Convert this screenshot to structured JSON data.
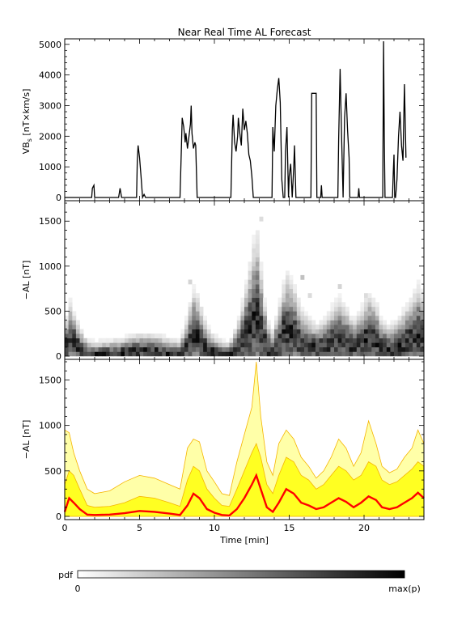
{
  "chart_data": [
    {
      "type": "line",
      "title": "Near Real Time AL Forecast",
      "ylabel": "VB",
      "ylabel_subscript": "s",
      "ylabel_units": "[nT×km/s]",
      "xlim": [
        0,
        24
      ],
      "ylim": [
        0,
        5100
      ],
      "xticks": [
        0,
        5,
        10,
        15,
        20
      ],
      "xtick_labels": [],
      "yticks": [
        0,
        1000,
        2000,
        3000,
        4000,
        5000
      ],
      "ytick_labels": [
        "0",
        "1000",
        "2000",
        "3000",
        "4000",
        "5000"
      ],
      "color": "#000000",
      "series": [
        {
          "points": [
            [
              0,
              0
            ],
            [
              1.8,
              0
            ],
            [
              1.85,
              300
            ],
            [
              1.95,
              400
            ],
            [
              2.0,
              0
            ],
            [
              3.6,
              0
            ],
            [
              3.7,
              300
            ],
            [
              3.8,
              0
            ],
            [
              4.8,
              0
            ],
            [
              4.85,
              1200
            ],
            [
              4.9,
              1700
            ],
            [
              5.0,
              1300
            ],
            [
              5.1,
              700
            ],
            [
              5.2,
              0
            ],
            [
              5.3,
              100
            ],
            [
              5.4,
              0
            ],
            [
              7.7,
              0
            ],
            [
              7.8,
              1700
            ],
            [
              7.85,
              2600
            ],
            [
              7.95,
              2300
            ],
            [
              8.05,
              1800
            ],
            [
              8.1,
              2100
            ],
            [
              8.2,
              1600
            ],
            [
              8.3,
              2000
            ],
            [
              8.4,
              2400
            ],
            [
              8.45,
              3000
            ],
            [
              8.5,
              2100
            ],
            [
              8.6,
              1600
            ],
            [
              8.7,
              1800
            ],
            [
              8.75,
              1700
            ],
            [
              8.85,
              0
            ],
            [
              11.1,
              0
            ],
            [
              11.2,
              2200
            ],
            [
              11.25,
              2700
            ],
            [
              11.35,
              1800
            ],
            [
              11.45,
              1500
            ],
            [
              11.55,
              2000
            ],
            [
              11.6,
              2600
            ],
            [
              11.7,
              2100
            ],
            [
              11.8,
              1700
            ],
            [
              11.9,
              2900
            ],
            [
              12.0,
              2200
            ],
            [
              12.1,
              2500
            ],
            [
              12.2,
              2100
            ],
            [
              12.3,
              1400
            ],
            [
              12.4,
              1200
            ],
            [
              12.5,
              700
            ],
            [
              12.6,
              0
            ],
            [
              13.85,
              0
            ],
            [
              13.9,
              2300
            ],
            [
              14.0,
              1500
            ],
            [
              14.1,
              3000
            ],
            [
              14.2,
              3500
            ],
            [
              14.3,
              3900
            ],
            [
              14.4,
              3100
            ],
            [
              14.5,
              600
            ],
            [
              14.6,
              0
            ],
            [
              14.7,
              0
            ],
            [
              14.75,
              1500
            ],
            [
              14.85,
              2300
            ],
            [
              14.95,
              0
            ],
            [
              15.0,
              700
            ],
            [
              15.1,
              1100
            ],
            [
              15.2,
              0
            ],
            [
              15.3,
              1000
            ],
            [
              15.35,
              1700
            ],
            [
              15.45,
              0
            ],
            [
              16.45,
              0
            ],
            [
              16.5,
              3400
            ],
            [
              16.8,
              3400
            ],
            [
              16.85,
              0
            ],
            [
              17.1,
              0
            ],
            [
              17.15,
              400
            ],
            [
              17.2,
              0
            ],
            [
              18.25,
              0
            ],
            [
              18.3,
              1900
            ],
            [
              18.4,
              4200
            ],
            [
              18.5,
              1900
            ],
            [
              18.6,
              0
            ],
            [
              18.7,
              2600
            ],
            [
              18.8,
              3400
            ],
            [
              18.9,
              2200
            ],
            [
              19.0,
              1300
            ],
            [
              19.05,
              0
            ],
            [
              19.6,
              0
            ],
            [
              19.65,
              300
            ],
            [
              19.7,
              0
            ],
            [
              21.25,
              0
            ],
            [
              21.3,
              5100
            ],
            [
              21.35,
              2000
            ],
            [
              21.4,
              0
            ],
            [
              21.9,
              0
            ],
            [
              21.95,
              800
            ],
            [
              22.0,
              1400
            ],
            [
              22.05,
              0
            ],
            [
              22.1,
              0
            ],
            [
              22.2,
              600
            ],
            [
              22.3,
              2000
            ],
            [
              22.4,
              2800
            ],
            [
              22.5,
              1700
            ],
            [
              22.6,
              1200
            ],
            [
              22.7,
              3700
            ],
            [
              22.8,
              1300
            ]
          ]
        }
      ]
    },
    {
      "type": "heatmap",
      "ylabel": "−AL [nT]",
      "xlim": [
        0,
        24
      ],
      "ylim": [
        0,
        1700
      ],
      "xticks": [
        0,
        5,
        10,
        15,
        20
      ],
      "xtick_labels": [],
      "yticks": [
        0,
        500,
        1000,
        1500
      ],
      "ytick_labels": [
        "0",
        "500",
        "1000",
        "1500"
      ],
      "colorscale": [
        "#ffffff",
        "#000000"
      ],
      "columns": 96,
      "rows": 34,
      "median_profile": [
        [
          0,
          50
        ],
        [
          0.3,
          200
        ],
        [
          0.6,
          150
        ],
        [
          1.0,
          80
        ],
        [
          1.5,
          20
        ],
        [
          2.0,
          15
        ],
        [
          3.0,
          20
        ],
        [
          4.0,
          35
        ],
        [
          5.0,
          60
        ],
        [
          6.0,
          50
        ],
        [
          7.0,
          30
        ],
        [
          7.7,
          15
        ],
        [
          8.2,
          120
        ],
        [
          8.6,
          250
        ],
        [
          9.0,
          200
        ],
        [
          9.5,
          80
        ],
        [
          10.0,
          40
        ],
        [
          10.5,
          15
        ],
        [
          11.0,
          10
        ],
        [
          11.5,
          80
        ],
        [
          12.0,
          200
        ],
        [
          12.5,
          350
        ],
        [
          12.8,
          450
        ],
        [
          13.1,
          300
        ],
        [
          13.5,
          100
        ],
        [
          13.9,
          50
        ],
        [
          14.3,
          150
        ],
        [
          14.8,
          300
        ],
        [
          15.3,
          250
        ],
        [
          15.8,
          150
        ],
        [
          16.3,
          120
        ],
        [
          16.8,
          80
        ],
        [
          17.3,
          100
        ],
        [
          17.8,
          150
        ],
        [
          18.3,
          200
        ],
        [
          18.8,
          160
        ],
        [
          19.3,
          100
        ],
        [
          19.8,
          150
        ],
        [
          20.3,
          220
        ],
        [
          20.8,
          180
        ],
        [
          21.2,
          100
        ],
        [
          21.7,
          80
        ],
        [
          22.2,
          100
        ],
        [
          22.7,
          150
        ],
        [
          23.2,
          200
        ],
        [
          23.6,
          260
        ],
        [
          24.0,
          200
        ]
      ],
      "spread_profile": [
        [
          0,
          0.8
        ],
        [
          2,
          0.6
        ],
        [
          4,
          0.6
        ],
        [
          6,
          0.6
        ],
        [
          8,
          0.8
        ],
        [
          10,
          0.7
        ],
        [
          12,
          0.9
        ],
        [
          13,
          1.0
        ],
        [
          16,
          0.8
        ],
        [
          24,
          0.8
        ]
      ]
    },
    {
      "type": "area",
      "ylabel": "−AL [nT]",
      "xlabel": "Time [min]",
      "xlim": [
        0,
        24
      ],
      "ylim": [
        0,
        1700
      ],
      "xticks": [
        0,
        5,
        10,
        15,
        20
      ],
      "xtick_labels": [
        "0",
        "5",
        "10",
        "15",
        "20"
      ],
      "yticks": [
        0,
        500,
        1000,
        1500
      ],
      "ytick_labels": [
        "0",
        "500",
        "1000",
        "1500"
      ],
      "band_colors": {
        "outer": "#ffffa8",
        "inner": "#ffff22",
        "edge": "#f5b400",
        "median": "#ff0000"
      },
      "median": [
        [
          0,
          50
        ],
        [
          0.3,
          200
        ],
        [
          0.6,
          150
        ],
        [
          1.0,
          80
        ],
        [
          1.5,
          20
        ],
        [
          2.0,
          15
        ],
        [
          3.0,
          20
        ],
        [
          4.0,
          35
        ],
        [
          5.0,
          60
        ],
        [
          6.0,
          50
        ],
        [
          7.0,
          30
        ],
        [
          7.7,
          15
        ],
        [
          8.2,
          120
        ],
        [
          8.6,
          250
        ],
        [
          9.0,
          200
        ],
        [
          9.5,
          80
        ],
        [
          10.0,
          40
        ],
        [
          10.5,
          15
        ],
        [
          11.0,
          10
        ],
        [
          11.5,
          80
        ],
        [
          12.0,
          200
        ],
        [
          12.5,
          350
        ],
        [
          12.8,
          450
        ],
        [
          13.1,
          300
        ],
        [
          13.5,
          100
        ],
        [
          13.9,
          50
        ],
        [
          14.3,
          150
        ],
        [
          14.8,
          300
        ],
        [
          15.3,
          250
        ],
        [
          15.8,
          150
        ],
        [
          16.3,
          120
        ],
        [
          16.8,
          80
        ],
        [
          17.3,
          100
        ],
        [
          17.8,
          150
        ],
        [
          18.3,
          200
        ],
        [
          18.8,
          160
        ],
        [
          19.3,
          100
        ],
        [
          19.8,
          150
        ],
        [
          20.3,
          220
        ],
        [
          20.8,
          180
        ],
        [
          21.2,
          100
        ],
        [
          21.7,
          80
        ],
        [
          22.2,
          100
        ],
        [
          22.7,
          150
        ],
        [
          23.2,
          200
        ],
        [
          23.6,
          260
        ],
        [
          24.0,
          200
        ]
      ],
      "inner_upper": [
        [
          0,
          350
        ],
        [
          0.3,
          500
        ],
        [
          0.6,
          450
        ],
        [
          1.0,
          300
        ],
        [
          1.5,
          120
        ],
        [
          2.0,
          100
        ],
        [
          3.0,
          110
        ],
        [
          4.0,
          150
        ],
        [
          5.0,
          220
        ],
        [
          6.0,
          200
        ],
        [
          7.0,
          150
        ],
        [
          7.7,
          110
        ],
        [
          8.2,
          400
        ],
        [
          8.6,
          550
        ],
        [
          9.0,
          500
        ],
        [
          9.5,
          300
        ],
        [
          10.0,
          200
        ],
        [
          10.5,
          120
        ],
        [
          11.0,
          110
        ],
        [
          11.5,
          300
        ],
        [
          12.0,
          500
        ],
        [
          12.5,
          700
        ],
        [
          12.8,
          800
        ],
        [
          13.1,
          650
        ],
        [
          13.5,
          350
        ],
        [
          13.9,
          250
        ],
        [
          14.3,
          450
        ],
        [
          14.8,
          650
        ],
        [
          15.3,
          600
        ],
        [
          15.8,
          450
        ],
        [
          16.3,
          400
        ],
        [
          16.8,
          300
        ],
        [
          17.3,
          350
        ],
        [
          17.8,
          450
        ],
        [
          18.3,
          550
        ],
        [
          18.8,
          500
        ],
        [
          19.3,
          400
        ],
        [
          19.8,
          450
        ],
        [
          20.3,
          600
        ],
        [
          20.8,
          550
        ],
        [
          21.2,
          400
        ],
        [
          21.7,
          350
        ],
        [
          22.2,
          380
        ],
        [
          22.7,
          450
        ],
        [
          23.2,
          520
        ],
        [
          23.6,
          600
        ],
        [
          24.0,
          550
        ]
      ],
      "outer_upper": [
        [
          0,
          950
        ],
        [
          0.3,
          920
        ],
        [
          0.6,
          700
        ],
        [
          1.0,
          500
        ],
        [
          1.5,
          300
        ],
        [
          2.0,
          250
        ],
        [
          3.0,
          280
        ],
        [
          4.0,
          380
        ],
        [
          5.0,
          450
        ],
        [
          6.0,
          420
        ],
        [
          7.0,
          350
        ],
        [
          7.7,
          300
        ],
        [
          8.2,
          750
        ],
        [
          8.6,
          850
        ],
        [
          9.0,
          820
        ],
        [
          9.5,
          500
        ],
        [
          10.0,
          380
        ],
        [
          10.5,
          250
        ],
        [
          11.0,
          230
        ],
        [
          11.5,
          600
        ],
        [
          12.0,
          900
        ],
        [
          12.5,
          1200
        ],
        [
          12.8,
          1700
        ],
        [
          13.1,
          1100
        ],
        [
          13.5,
          600
        ],
        [
          13.9,
          450
        ],
        [
          14.3,
          800
        ],
        [
          14.8,
          950
        ],
        [
          15.3,
          850
        ],
        [
          15.8,
          650
        ],
        [
          16.3,
          550
        ],
        [
          16.8,
          420
        ],
        [
          17.3,
          500
        ],
        [
          17.8,
          650
        ],
        [
          18.3,
          850
        ],
        [
          18.8,
          750
        ],
        [
          19.3,
          550
        ],
        [
          19.8,
          700
        ],
        [
          20.3,
          1050
        ],
        [
          20.8,
          800
        ],
        [
          21.2,
          550
        ],
        [
          21.7,
          480
        ],
        [
          22.2,
          520
        ],
        [
          22.7,
          650
        ],
        [
          23.2,
          750
        ],
        [
          23.6,
          950
        ],
        [
          24.0,
          800
        ]
      ]
    }
  ],
  "colorbar": {
    "label": "pdf",
    "min_label": "0",
    "max_label": "max(p)",
    "colors": [
      "#ffffff",
      "#000000"
    ]
  }
}
